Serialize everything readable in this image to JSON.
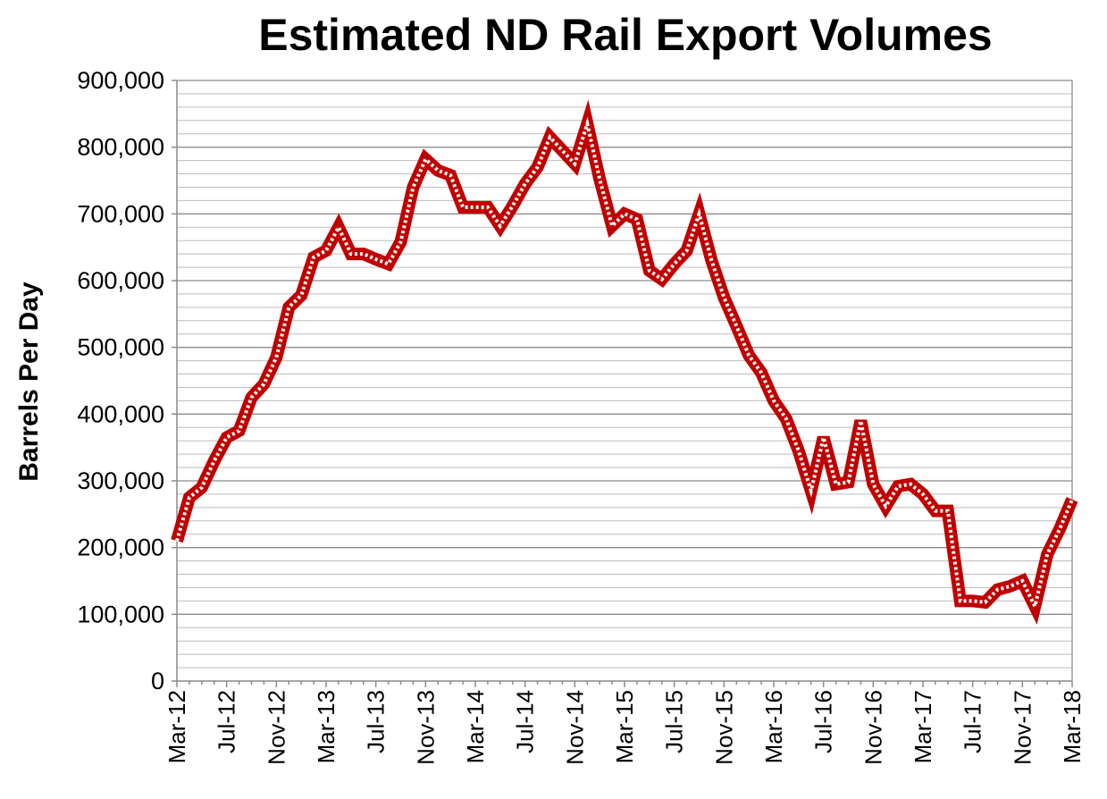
{
  "chart_data": {
    "type": "line",
    "title": "Estimated ND Rail Export Volumes",
    "xlabel": "",
    "ylabel": "Barrels Per Day",
    "ylim": [
      0,
      900000
    ],
    "yticks": [
      0,
      100000,
      200000,
      300000,
      400000,
      500000,
      600000,
      700000,
      800000,
      900000
    ],
    "ytick_labels": [
      "0",
      "100,000",
      "200,000",
      "300,000",
      "400,000",
      "500,000",
      "600,000",
      "700,000",
      "800,000",
      "900,000"
    ],
    "minor_gridlines_per_major": 5,
    "x_tick_labels": [
      "Mar-12",
      "Jul-12",
      "Nov-12",
      "Mar-13",
      "Jul-13",
      "Nov-13",
      "Mar-14",
      "Jul-14",
      "Nov-14",
      "Mar-15",
      "Jul-15",
      "Nov-15",
      "Mar-16",
      "Jul-16",
      "Nov-16",
      "Mar-17",
      "Jul-17",
      "Nov-17",
      "Mar-18"
    ],
    "x_tick_every_n_months": 4,
    "series_color": "#c00000",
    "legend": "none",
    "series": [
      {
        "name": "Estimated ND Rail Export Volumes",
        "x": [
          "Mar-12",
          "Apr-12",
          "May-12",
          "Jun-12",
          "Jul-12",
          "Aug-12",
          "Sep-12",
          "Oct-12",
          "Nov-12",
          "Dec-12",
          "Jan-13",
          "Feb-13",
          "Mar-13",
          "Apr-13",
          "May-13",
          "Jun-13",
          "Jul-13",
          "Aug-13",
          "Sep-13",
          "Oct-13",
          "Nov-13",
          "Dec-13",
          "Jan-14",
          "Feb-14",
          "Mar-14",
          "Apr-14",
          "May-14",
          "Jun-14",
          "Jul-14",
          "Aug-14",
          "Sep-14",
          "Oct-14",
          "Nov-14",
          "Dec-14",
          "Jan-15",
          "Feb-15",
          "Mar-15",
          "Apr-15",
          "May-15",
          "Jun-15",
          "Jul-15",
          "Aug-15",
          "Sep-15",
          "Oct-15",
          "Nov-15",
          "Dec-15",
          "Jan-16",
          "Feb-16",
          "Mar-16",
          "Apr-16",
          "May-16",
          "Jun-16",
          "Jul-16",
          "Aug-16",
          "Sep-16",
          "Oct-16",
          "Nov-16",
          "Dec-16",
          "Jan-17",
          "Feb-17",
          "Mar-17",
          "Apr-17",
          "May-17",
          "Jun-17",
          "Jul-17",
          "Aug-17",
          "Sep-17",
          "Oct-17",
          "Nov-17",
          "Dec-17",
          "Jan-18",
          "Feb-18",
          "Mar-18"
        ],
        "values": [
          210000,
          275000,
          290000,
          330000,
          365000,
          375000,
          425000,
          445000,
          485000,
          560000,
          578000,
          635000,
          645000,
          680000,
          640000,
          640000,
          632000,
          625000,
          658000,
          740000,
          782000,
          765000,
          758000,
          710000,
          710000,
          710000,
          682000,
          712000,
          745000,
          770000,
          815000,
          795000,
          775000,
          835000,
          752000,
          682000,
          700000,
          692000,
          615000,
          602000,
          625000,
          645000,
          700000,
          630000,
          575000,
          532000,
          488000,
          462000,
          420000,
          393000,
          345000,
          285000,
          365000,
          295000,
          298000,
          390000,
          295000,
          262000,
          292000,
          295000,
          280000,
          255000,
          255000,
          120000,
          120000,
          118000,
          137000,
          142000,
          150000,
          112000,
          190000,
          228000,
          272000
        ]
      }
    ]
  }
}
